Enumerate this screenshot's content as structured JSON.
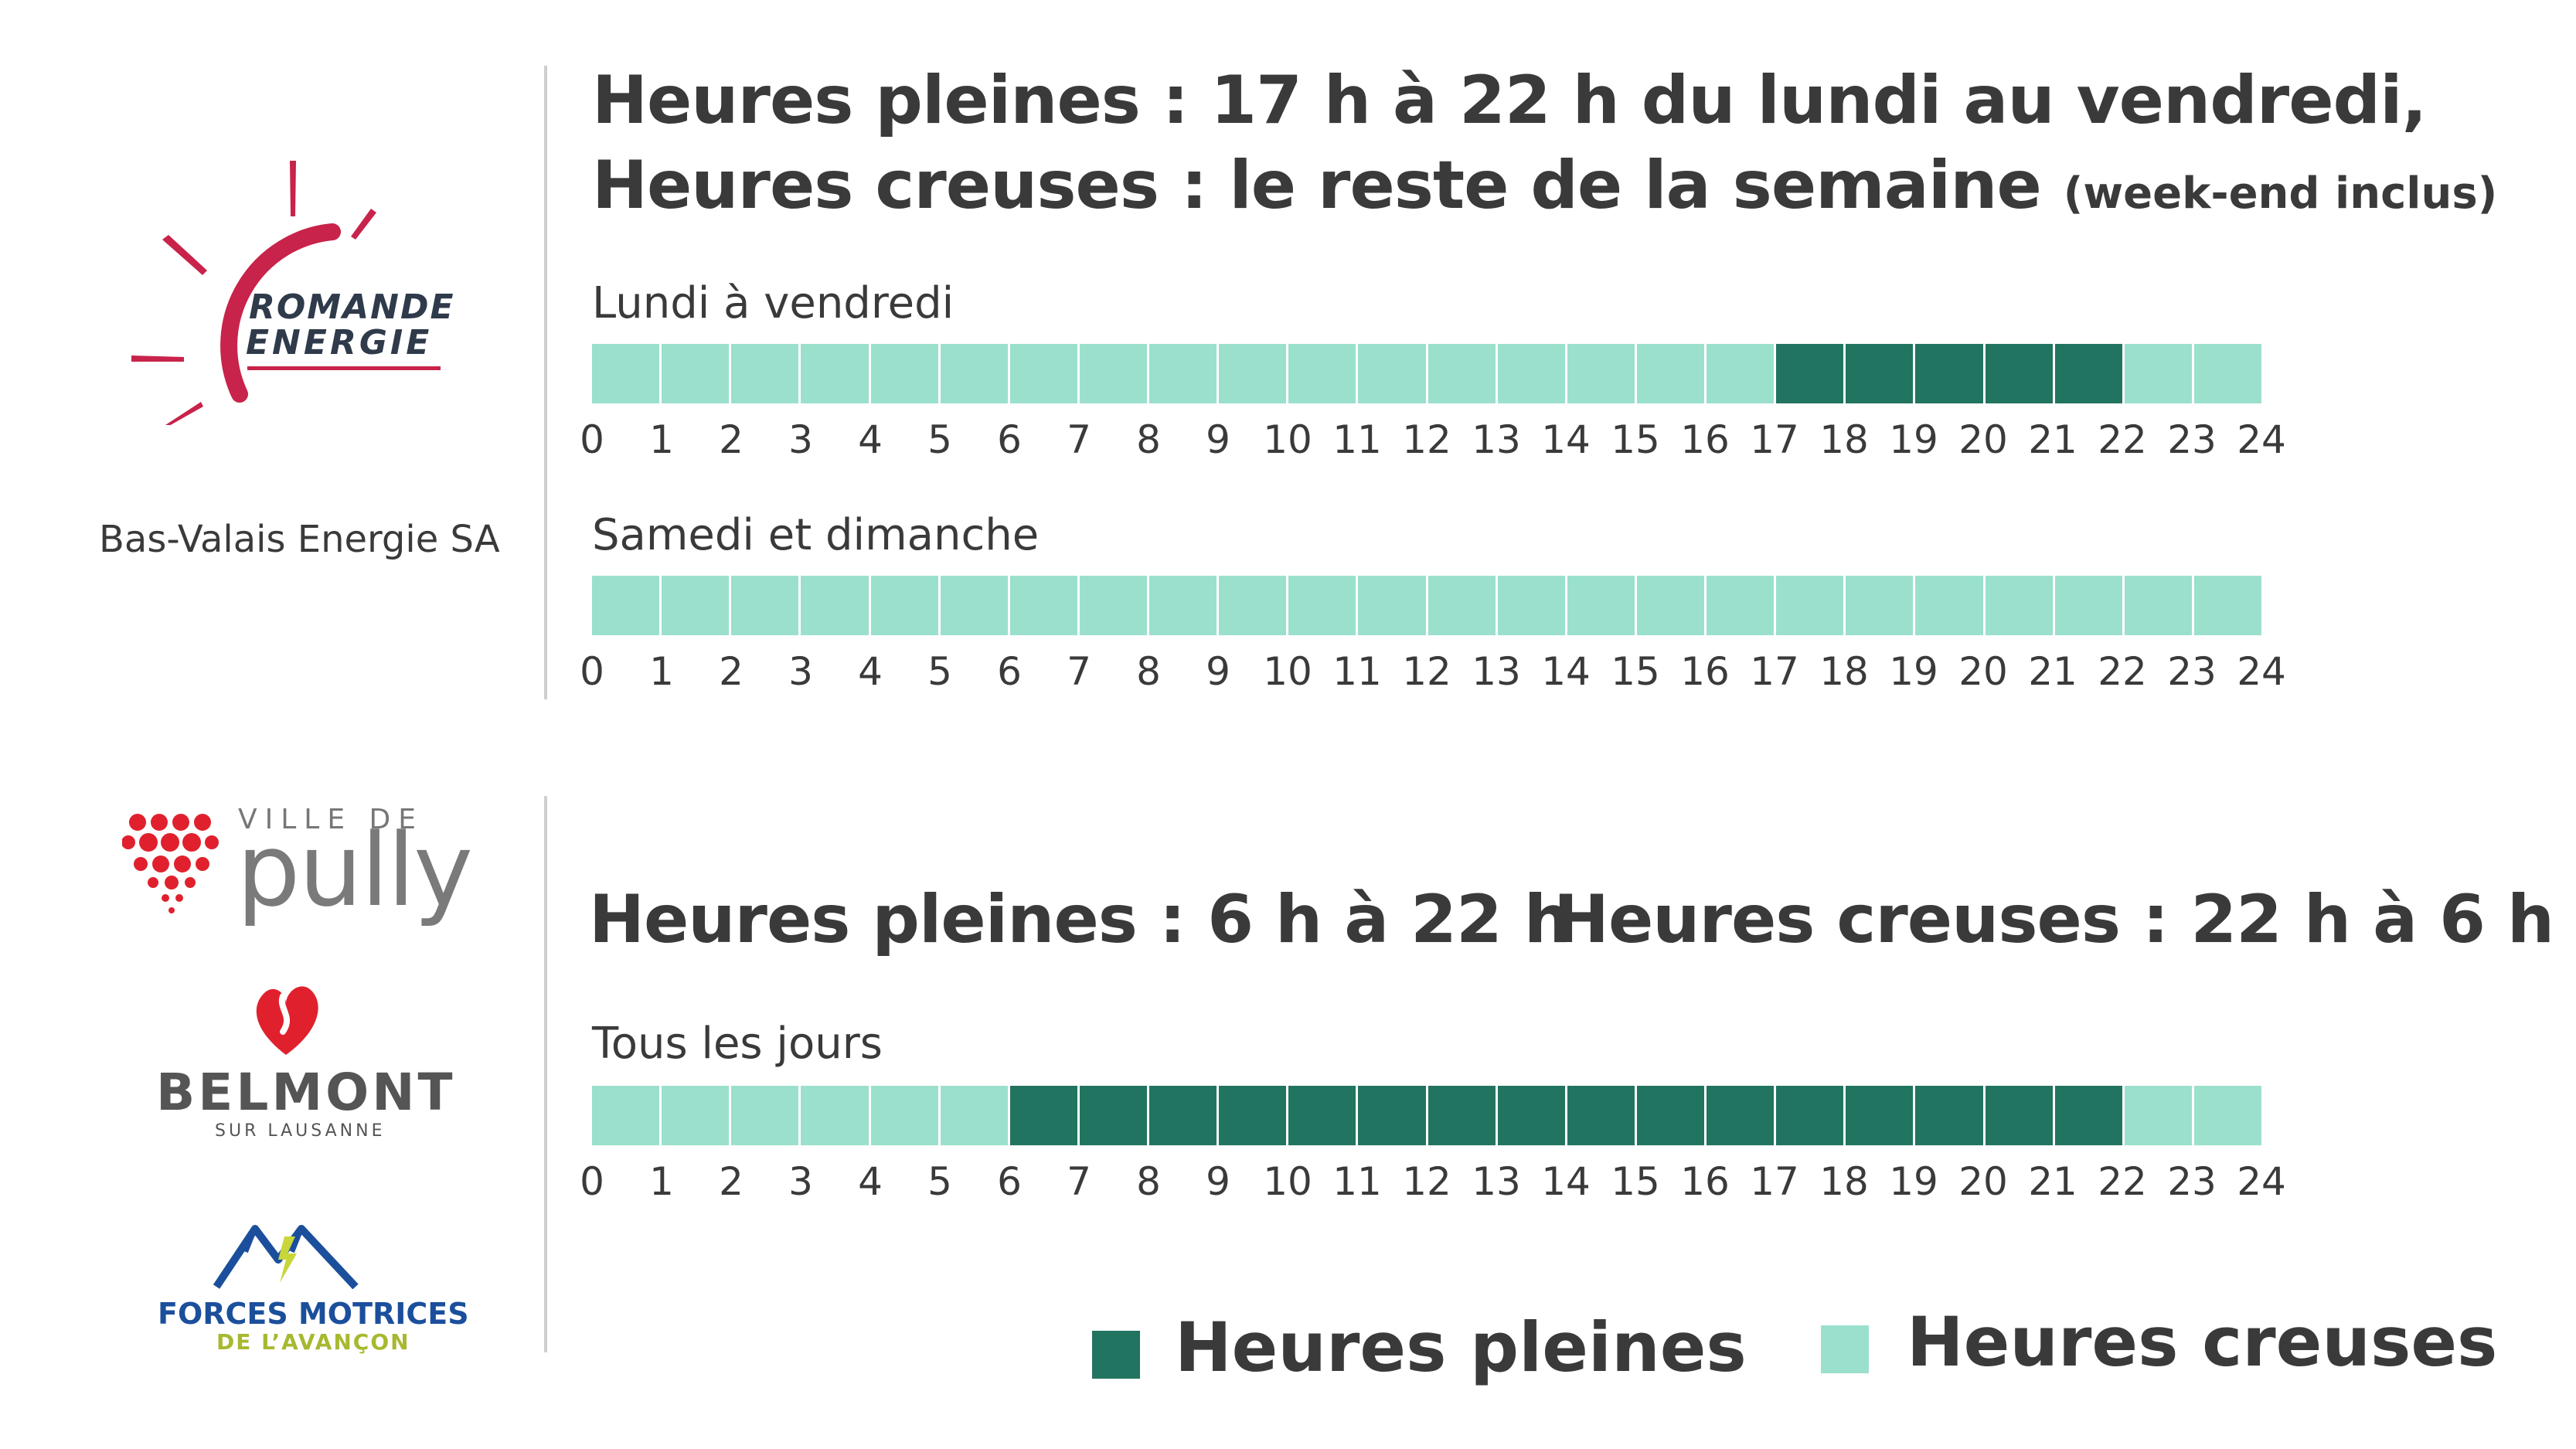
{
  "section1": {
    "headline_line1": "Heures pleines : 17 h à 22 h du lundi au vendredi,",
    "headline_line2": "Heures creuses : le reste de la semaine",
    "headline_note": "(week-end inclus)",
    "rows": [
      {
        "label": "Lundi à vendredi",
        "peak_hours": [
          17,
          18,
          19,
          20,
          21
        ]
      },
      {
        "label": "Samedi et dimanche",
        "peak_hours": []
      }
    ]
  },
  "section2": {
    "headline_peak": "Heures pleines : 6 h à 22 h",
    "headline_offpeak": "Heures creuses : 22 h à 6 h",
    "rows": [
      {
        "label": "Tous les jours",
        "peak_hours": [
          6,
          7,
          8,
          9,
          10,
          11,
          12,
          13,
          14,
          15,
          16,
          17,
          18,
          19,
          20,
          21
        ]
      }
    ]
  },
  "hour_ticks": [
    "0",
    "1",
    "2",
    "3",
    "4",
    "5",
    "6",
    "7",
    "8",
    "9",
    "10",
    "11",
    "12",
    "13",
    "14",
    "15",
    "16",
    "17",
    "18",
    "19",
    "20",
    "21",
    "22",
    "23",
    "24"
  ],
  "legend": {
    "peak_label": "Heures pleines",
    "offpeak_label": "Heures creuses"
  },
  "colors": {
    "peak": "#217460",
    "offpeak": "#9be0cc",
    "text": "#3a3a3a"
  },
  "logos": {
    "romande": {
      "line1": "ROMANDE",
      "line2": "ENERGIE"
    },
    "bas_valais": "Bas-Valais Energie SA",
    "pully": {
      "small": "VILLE DE",
      "big": "pully"
    },
    "belmont": {
      "big": "BELMONT",
      "small": "SUR LAUSANNE"
    },
    "forces": {
      "line1": "FORCES MOTRICES",
      "line2": "DE L’AVANÇON"
    }
  }
}
